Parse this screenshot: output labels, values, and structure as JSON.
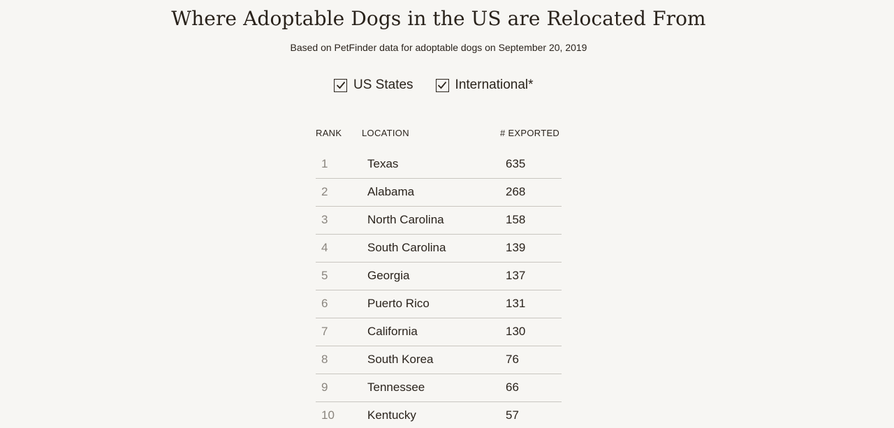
{
  "header": {
    "title": "Where Adoptable Dogs in the US are Relocated From",
    "subtitle": "Based on PetFinder data for adoptable dogs on September 20, 2019"
  },
  "filters": [
    {
      "label": "US States",
      "checked": true
    },
    {
      "label": "International*",
      "checked": true
    }
  ],
  "table": {
    "columns": {
      "rank": "RANK",
      "location": "LOCATION",
      "exported": "# EXPORTED"
    },
    "rows": [
      {
        "rank": "1",
        "location": "Texas",
        "count": "635"
      },
      {
        "rank": "2",
        "location": "Alabama",
        "count": "268"
      },
      {
        "rank": "3",
        "location": "North Carolina",
        "count": "158"
      },
      {
        "rank": "4",
        "location": "South Carolina",
        "count": "139"
      },
      {
        "rank": "5",
        "location": "Georgia",
        "count": "137"
      },
      {
        "rank": "6",
        "location": "Puerto Rico",
        "count": "131"
      },
      {
        "rank": "7",
        "location": "California",
        "count": "130"
      },
      {
        "rank": "8",
        "location": "South Korea",
        "count": "76"
      },
      {
        "rank": "9",
        "location": "Tennessee",
        "count": "66"
      },
      {
        "rank": "10",
        "location": "Kentucky",
        "count": "57"
      }
    ]
  }
}
